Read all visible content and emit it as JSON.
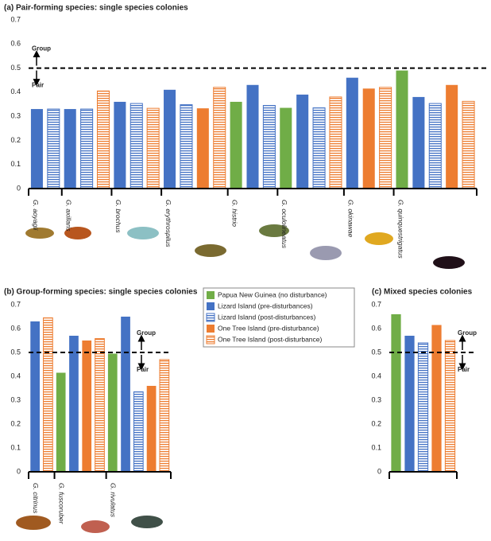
{
  "chart_data": [
    {
      "type": "bar",
      "title": "(a) Pair-forming species: single species colonies",
      "categories": [
        "G. aoyagii",
        "G. axillaris",
        "G. brochus",
        "G. erythrospilus",
        "G. histrio",
        "G. oculolineatus",
        "G. okinawae",
        "G. quinquestrigatus"
      ],
      "series": [
        {
          "color": "#70ad47",
          "hatch": false,
          "values": [
            null,
            null,
            null,
            null,
            0.36,
            0.335,
            null,
            0.49
          ]
        },
        {
          "color": "#4472c4",
          "hatch": false,
          "values": [
            0.33,
            0.33,
            0.36,
            0.41,
            0.43,
            0.39,
            0.46,
            0.38
          ]
        },
        {
          "color": "#4472c4",
          "hatch": true,
          "values": [
            0.33,
            0.33,
            0.353,
            0.348,
            0.345,
            0.335,
            null,
            0.353
          ]
        },
        {
          "color": "#ed7d31",
          "hatch": false,
          "values": [
            null,
            null,
            null,
            0.333,
            null,
            null,
            0.415,
            0.43
          ]
        },
        {
          "color": "#ed7d31",
          "hatch": true,
          "values": [
            null,
            0.405,
            0.333,
            0.42,
            null,
            0.38,
            0.42,
            0.362
          ]
        }
      ],
      "ylim": [
        0,
        0.7
      ],
      "yticks": [
        0,
        0.1,
        0.2,
        0.3,
        0.4,
        0.5,
        0.6,
        0.7
      ],
      "ref_line": 0.5,
      "annotations": [
        "Group",
        "Pair"
      ]
    },
    {
      "type": "bar",
      "title": "(b) Group-forming species: single species colonies",
      "categories": [
        "G. citrinus",
        "G. fuscoruber",
        "G. rivulatus"
      ],
      "series": [
        {
          "name": "Papua New Guinea (no disturbance)",
          "color": "#70ad47",
          "hatch": false,
          "values": [
            null,
            0.415,
            0.495
          ]
        },
        {
          "name": "Lizard Island (pre-disturbances)",
          "color": "#4472c4",
          "hatch": false,
          "values": [
            0.63,
            0.57,
            0.65
          ]
        },
        {
          "name": "Lizard Island (post-disturbances)",
          "color": "#4472c4",
          "hatch": true,
          "values": [
            null,
            null,
            0.335
          ]
        },
        {
          "name": "One Tree Island (pre-disturbance)",
          "color": "#ed7d31",
          "hatch": false,
          "values": [
            null,
            0.55,
            0.36
          ]
        },
        {
          "name": "One Tree Island (post-disturbance)",
          "color": "#ed7d31",
          "hatch": true,
          "values": [
            0.645,
            0.558,
            0.47
          ]
        }
      ],
      "ylim": [
        0,
        0.7
      ],
      "yticks": [
        0,
        0.1,
        0.2,
        0.3,
        0.4,
        0.5,
        0.6,
        0.7
      ],
      "ref_line": 0.5,
      "annotations": [
        "Group",
        "Pair"
      ]
    },
    {
      "type": "bar",
      "title": "(c) Mixed species colonies",
      "categories": [
        null
      ],
      "series": [
        {
          "color": "#70ad47",
          "hatch": false,
          "values": [
            0.66
          ]
        },
        {
          "color": "#4472c4",
          "hatch": false,
          "values": [
            0.57
          ]
        },
        {
          "color": "#4472c4",
          "hatch": true,
          "values": [
            0.54
          ]
        },
        {
          "color": "#ed7d31",
          "hatch": false,
          "values": [
            0.615
          ]
        },
        {
          "color": "#ed7d31",
          "hatch": true,
          "values": [
            0.55
          ]
        }
      ],
      "ylim": [
        0,
        0.7
      ],
      "yticks": [
        0,
        0.1,
        0.2,
        0.3,
        0.4,
        0.5,
        0.6,
        0.7
      ],
      "ref_line": 0.5,
      "annotations": [
        "Group",
        "Pair"
      ]
    }
  ]
}
